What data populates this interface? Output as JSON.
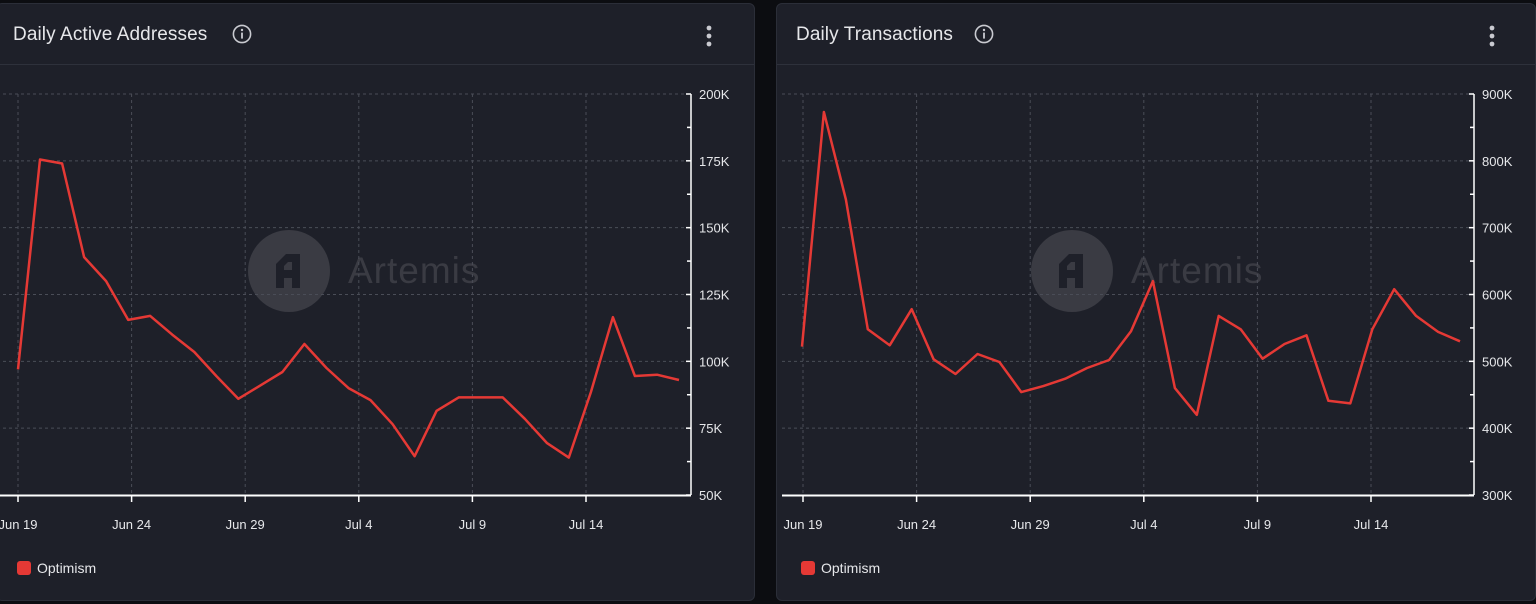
{
  "colors": {
    "series": "#e53935",
    "grid": "#4a4d57",
    "axis": "#ffffff",
    "text": "#e6e7ea"
  },
  "watermark": {
    "text": "Artemis"
  },
  "chart_data": [
    {
      "type": "line",
      "title": "Daily Active Addresses",
      "legend": {
        "placement": "bottom-left",
        "label": "Optimism"
      },
      "xticks": [
        "Jun 19",
        "Jun 24",
        "Jun 29",
        "Jul 4",
        "Jul 9",
        "Jul 14"
      ],
      "yticks": [
        "200K",
        "175K",
        "150K",
        "125K",
        "100K",
        "75K",
        "50K"
      ],
      "ylim": [
        50000,
        200000
      ],
      "grid": true,
      "series": [
        {
          "name": "Optimism",
          "color": "#e53935",
          "x": [
            "Jun 18",
            "Jun 19",
            "Jun 20",
            "Jun 21",
            "Jun 22",
            "Jun 23",
            "Jun 24",
            "Jun 25",
            "Jun 26",
            "Jun 27",
            "Jun 28",
            "Jun 29",
            "Jun 30",
            "Jul 1",
            "Jul 2",
            "Jul 3",
            "Jul 4",
            "Jul 5",
            "Jul 6",
            "Jul 7",
            "Jul 8",
            "Jul 9",
            "Jul 10",
            "Jul 11",
            "Jul 12",
            "Jul 13",
            "Jul 14",
            "Jul 15",
            "Jul 16",
            "Jul 17",
            "Jul 18"
          ],
          "values": [
            97000,
            175500,
            174000,
            139000,
            130000,
            115500,
            117000,
            110000,
            103500,
            94500,
            86000,
            91000,
            96000,
            106500,
            97500,
            90000,
            85500,
            76500,
            64500,
            81500,
            86500,
            86500,
            86500,
            78500,
            69500,
            64000,
            88500,
            116500,
            94500,
            95000,
            93000
          ]
        }
      ]
    },
    {
      "type": "line",
      "title": "Daily Transactions",
      "legend": {
        "placement": "bottom-left",
        "label": "Optimism"
      },
      "xticks": [
        "Jun 19",
        "Jun 24",
        "Jun 29",
        "Jul 4",
        "Jul 9",
        "Jul 14"
      ],
      "yticks": [
        "900K",
        "800K",
        "700K",
        "600K",
        "500K",
        "400K",
        "300K"
      ],
      "ylim": [
        300000,
        900000
      ],
      "grid": true,
      "series": [
        {
          "name": "Optimism",
          "color": "#e53935",
          "x": [
            "Jun 18",
            "Jun 19",
            "Jun 20",
            "Jun 21",
            "Jun 22",
            "Jun 23",
            "Jun 24",
            "Jun 25",
            "Jun 26",
            "Jun 27",
            "Jun 28",
            "Jun 29",
            "Jun 30",
            "Jul 1",
            "Jul 2",
            "Jul 3",
            "Jul 4",
            "Jul 5",
            "Jul 6",
            "Jul 7",
            "Jul 8",
            "Jul 9",
            "Jul 10",
            "Jul 11",
            "Jul 12",
            "Jul 13",
            "Jul 14",
            "Jul 15",
            "Jul 16",
            "Jul 17",
            "Jul 18"
          ],
          "values": [
            522000,
            873000,
            742000,
            548000,
            524000,
            578000,
            503000,
            481000,
            511000,
            499000,
            454000,
            463000,
            474000,
            490000,
            502000,
            545000,
            620000,
            460000,
            420000,
            568000,
            548000,
            504000,
            526000,
            539000,
            441000,
            437000,
            548000,
            608000,
            568000,
            544000,
            530000
          ]
        }
      ]
    }
  ]
}
